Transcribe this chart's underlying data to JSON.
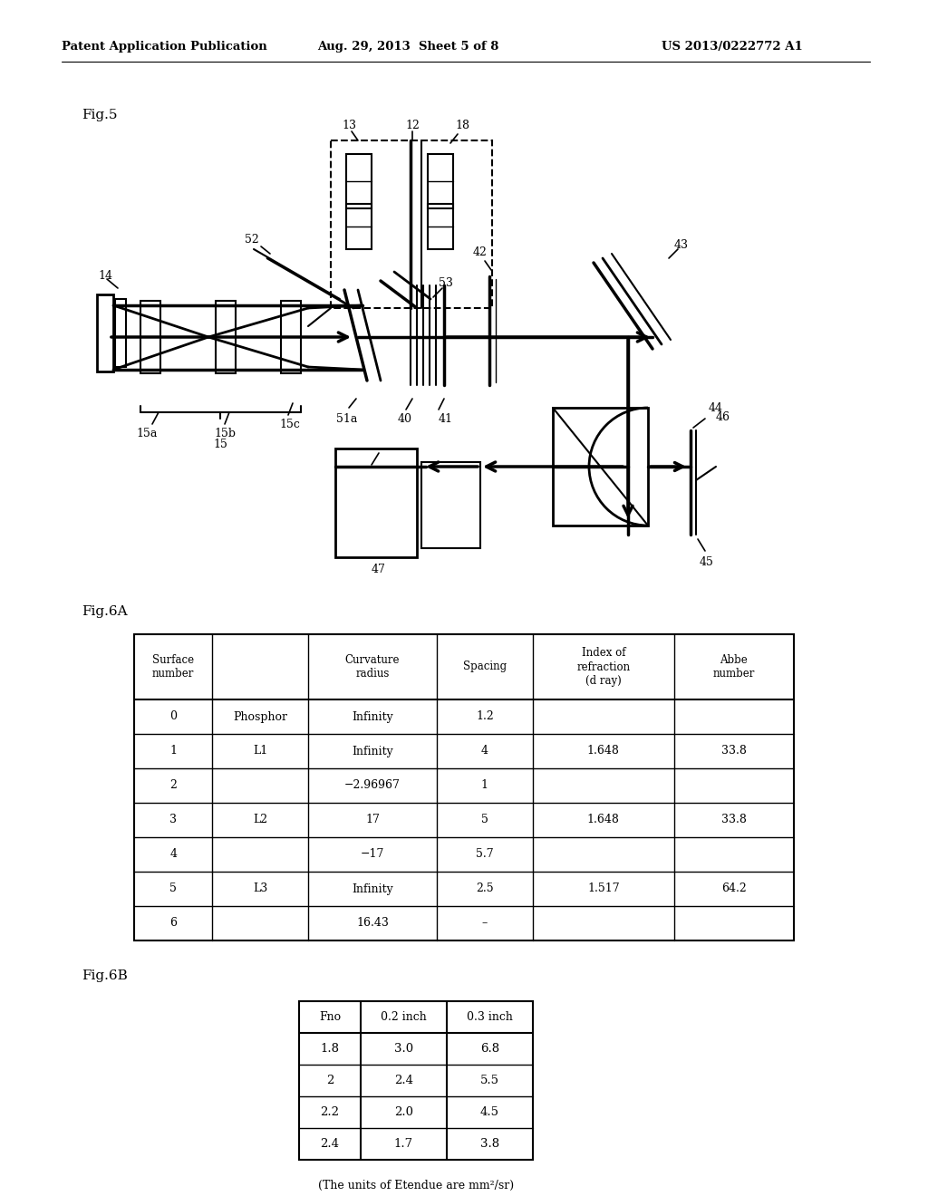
{
  "header_text_left": "Patent Application Publication",
  "header_text_mid": "Aug. 29, 2013  Sheet 5 of 8",
  "header_text_right": "US 2013/0222772 A1",
  "fig5_label": "Fig.5",
  "fig6a_label": "Fig.6A",
  "fig6b_label": "Fig.6B",
  "table6a_headers": [
    "Surface\nnumber",
    "",
    "Curvature\nradius",
    "Spacing",
    "Index of\nrefraction\n(d ray)",
    "Abbe\nnumber"
  ],
  "table6a_rows": [
    [
      "0",
      "Phosphor",
      "Infinity",
      "1.2",
      "",
      ""
    ],
    [
      "1",
      "L1",
      "Infinity",
      "4",
      "1.648",
      "33.8"
    ],
    [
      "2",
      "",
      "−2.96967",
      "1",
      "",
      ""
    ],
    [
      "3",
      "L2",
      "17",
      "5",
      "1.648",
      "33.8"
    ],
    [
      "4",
      "",
      "−17",
      "5.7",
      "",
      ""
    ],
    [
      "5",
      "L3",
      "Infinity",
      "2.5",
      "1.517",
      "64.2"
    ],
    [
      "6",
      "",
      "16.43",
      "–",
      "",
      ""
    ]
  ],
  "table6b_headers": [
    "Fno",
    "0.2 inch",
    "0.3 inch"
  ],
  "table6b_rows": [
    [
      "1.8",
      "3.0",
      "6.8"
    ],
    [
      "2",
      "2.4",
      "5.5"
    ],
    [
      "2.2",
      "2.0",
      "4.5"
    ],
    [
      "2.4",
      "1.7",
      "3.8"
    ]
  ],
  "etendue_note": "(The units of Etendue are mm²/sr)"
}
